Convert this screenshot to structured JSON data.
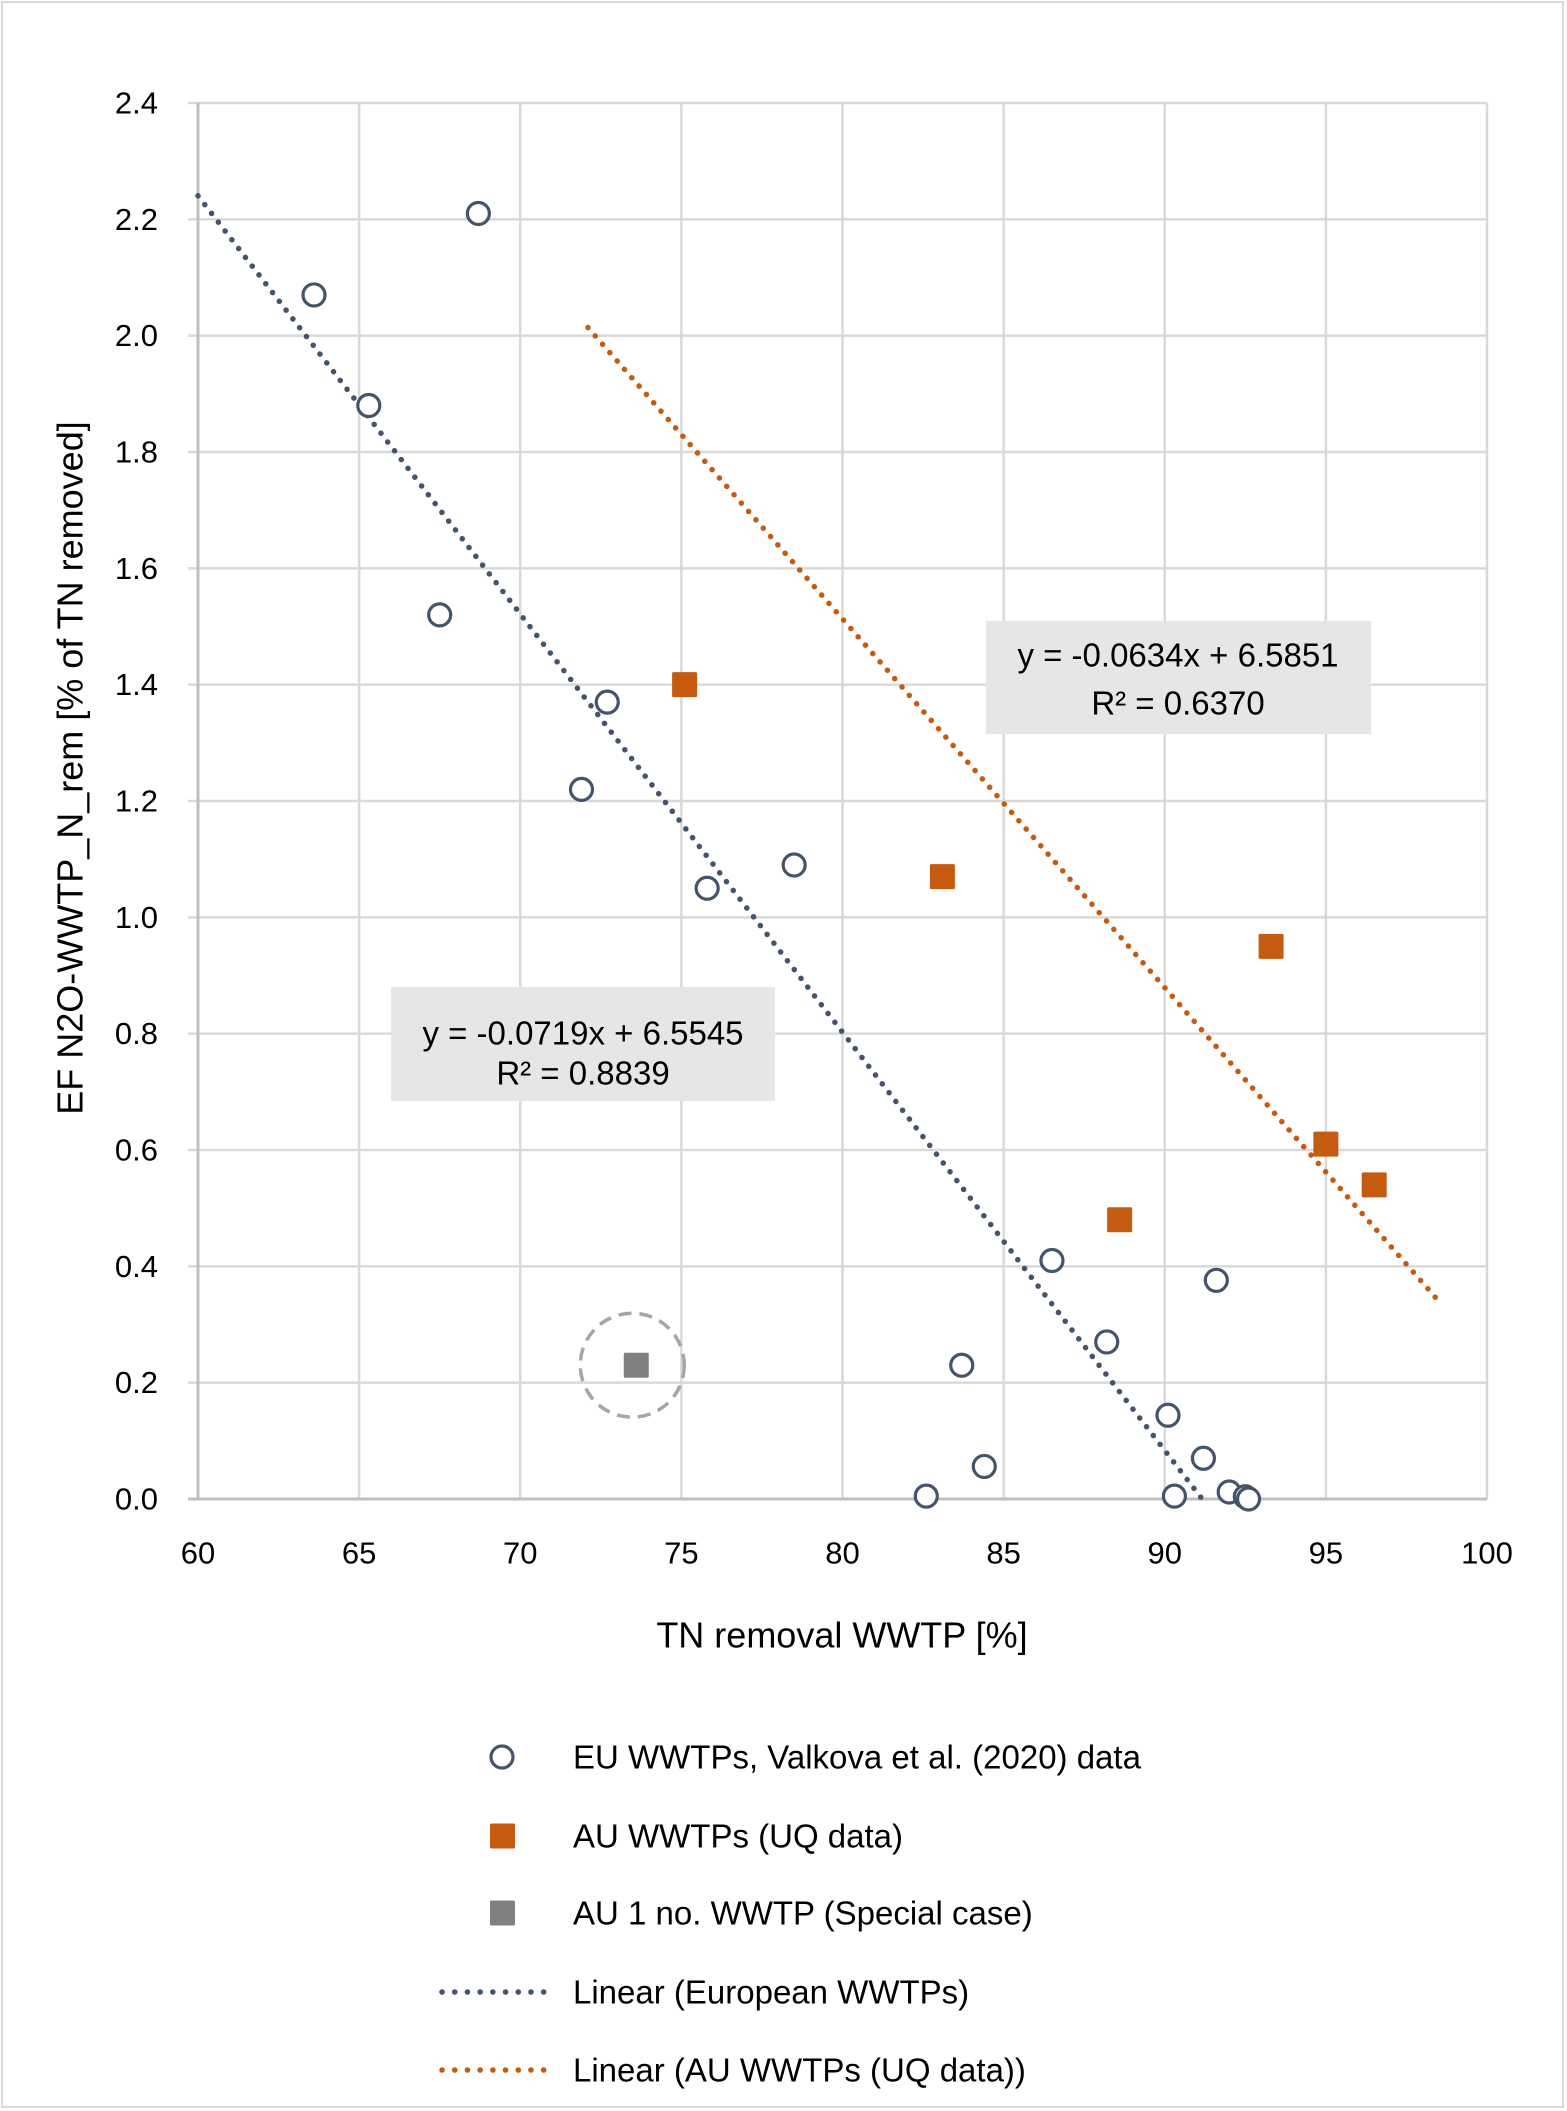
{
  "chart_data": {
    "type": "scatter",
    "title": "",
    "xlabel": "TN removal WWTP [%]",
    "ylabel": "EF N2O-WWTP_N_rem [% of TN removed]",
    "xlim": [
      60,
      100
    ],
    "ylim": [
      0,
      2.4
    ],
    "x_ticks": [
      60,
      65,
      70,
      75,
      80,
      85,
      90,
      95,
      100
    ],
    "x_tick_labels": [
      "60",
      "65",
      "70",
      "75",
      "80",
      "85",
      "90",
      "95",
      "100"
    ],
    "y_ticks": [
      0,
      0.2,
      0.4,
      0.6,
      0.8,
      1.0,
      1.2,
      1.4,
      1.6,
      1.8,
      2.0,
      2.2,
      2.4
    ],
    "y_tick_labels": [
      "0.0",
      "0.2",
      "0.4",
      "0.6",
      "0.8",
      "1.0",
      "1.2",
      "1.4",
      "1.6",
      "1.8",
      "2.0",
      "2.2",
      "2.4"
    ],
    "grid": true,
    "legend_position": "bottom",
    "colors": {
      "eu": "#44546a",
      "au": "#c55a11",
      "special": "#808080",
      "special_ring": "#a6a6a6",
      "grid": "#d9d9d9",
      "axis": "#bfbfbf",
      "annotation_bg": "#e7e6e6"
    },
    "series": [
      {
        "name": "EU WWTPs, Valkova et al. (2020) data",
        "marker": "open-circle",
        "points": [
          [
            63.6,
            2.07
          ],
          [
            65.3,
            1.88
          ],
          [
            67.5,
            1.52
          ],
          [
            68.7,
            2.21
          ],
          [
            71.9,
            1.22
          ],
          [
            72.7,
            1.37
          ],
          [
            75.8,
            1.05
          ],
          [
            78.5,
            1.09
          ],
          [
            82.6,
            0.005
          ],
          [
            83.7,
            0.23
          ],
          [
            84.4,
            0.056
          ],
          [
            86.5,
            0.41
          ],
          [
            88.2,
            0.27
          ],
          [
            90.1,
            0.144
          ],
          [
            90.3,
            0.005
          ],
          [
            91.2,
            0.07
          ],
          [
            91.6,
            0.376
          ],
          [
            92.0,
            0.012
          ],
          [
            92.5,
            0.004
          ],
          [
            92.6,
            0.0
          ]
        ]
      },
      {
        "name": "AU WWTPs (UQ data)",
        "marker": "square",
        "points": [
          [
            75.1,
            1.4
          ],
          [
            83.1,
            1.07
          ],
          [
            88.6,
            0.48
          ],
          [
            93.3,
            0.95
          ],
          [
            95.0,
            0.61
          ],
          [
            96.5,
            0.54
          ]
        ]
      },
      {
        "name": "AU 1 no. WWTP (Special case)",
        "marker": "square",
        "points": [
          [
            73.6,
            0.23
          ]
        ],
        "highlight": "dashed-circle"
      }
    ],
    "trendlines": [
      {
        "name": "Linear (European WWTPs)",
        "slope": -0.0719,
        "intercept": 6.5545,
        "x_range": [
          60,
          91.16
        ],
        "equation": "y = -0.0719x + 6.5545",
        "r2": "R² = 0.8839"
      },
      {
        "name": "Linear (AU WWTPs (UQ data))",
        "slope": -0.0634,
        "intercept": 6.5851,
        "x_range": [
          72.1,
          98.45
        ],
        "equation": "y = -0.0634x + 6.5851",
        "r2": "R² = 0.6370"
      }
    ],
    "legend": [
      {
        "label": "EU WWTPs, Valkova et al. (2020) data",
        "symbol": "open-circle",
        "series": "eu"
      },
      {
        "label": "AU WWTPs (UQ data)",
        "symbol": "square",
        "series": "au"
      },
      {
        "label": "AU 1 no. WWTP (Special case)",
        "symbol": "square",
        "series": "special"
      },
      {
        "label": "Linear (European WWTPs)",
        "symbol": "dotted-line",
        "series": "eu"
      },
      {
        "label": "Linear (AU WWTPs (UQ data))",
        "symbol": "dotted-line",
        "series": "au"
      }
    ]
  }
}
